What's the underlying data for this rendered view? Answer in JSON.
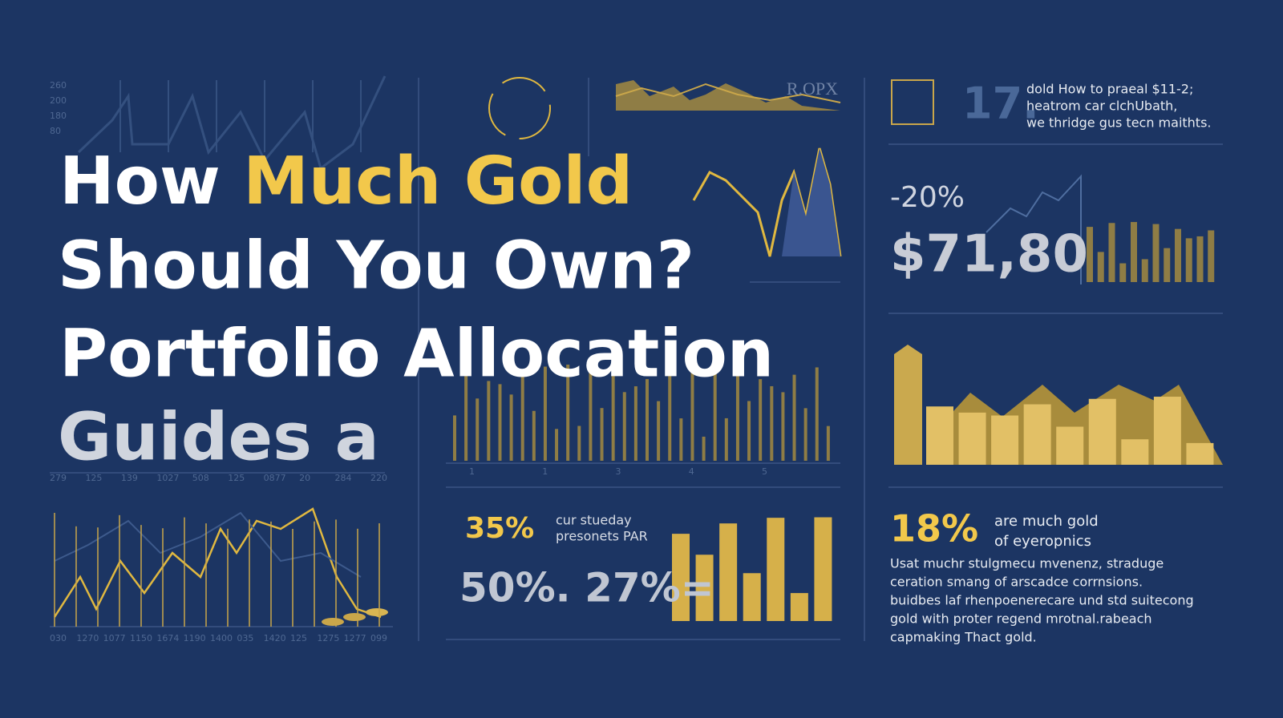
{
  "title": {
    "line1_white": "How",
    "line1_gold": "Much Gold",
    "line2": "Should You Own?",
    "line3": "Portfolio Allocation",
    "line4": "Guides a"
  },
  "top_mid_label": "R.OPX",
  "top_right": {
    "number": "17.",
    "lines": [
      "dold How to praeal $11-2;",
      "heatrom car clchUbath,",
      "we thridge gus tecn maithts."
    ]
  },
  "stats": {
    "change": "-20%",
    "price": "$71,80"
  },
  "bottom_mid": {
    "big_percent": "35%",
    "caption": [
      "cur stueday",
      "presonets PAR"
    ],
    "figure": "50%. 27%="
  },
  "bottom_right": {
    "percent": "18%",
    "heading": [
      "are much gold",
      "of eyeropnics"
    ],
    "paragraph": [
      "Usat muchr stulgmecu mvenenz, straduge",
      "ceration smang of arscadce corrnsions.",
      "buidbes laf rhenpoenerecare und std suitecong",
      "gold with proter regend mrotnal.rabeach",
      "capmaking Thact gold."
    ]
  },
  "axis_labels": {
    "left_y": [
      "260",
      "200",
      "180",
      "80"
    ],
    "left_x": [
      "279",
      "125",
      "139",
      "1027",
      "508",
      "125",
      "0877",
      "20",
      "284",
      "220"
    ],
    "mid_x": [
      "1",
      "1",
      "3",
      "4",
      "5"
    ],
    "bottom_x": [
      "030",
      "1270",
      "1077",
      "1150",
      "1674",
      "1190",
      "1400",
      "035",
      "1420",
      "125",
      "1275",
      "1277",
      "099"
    ]
  }
}
